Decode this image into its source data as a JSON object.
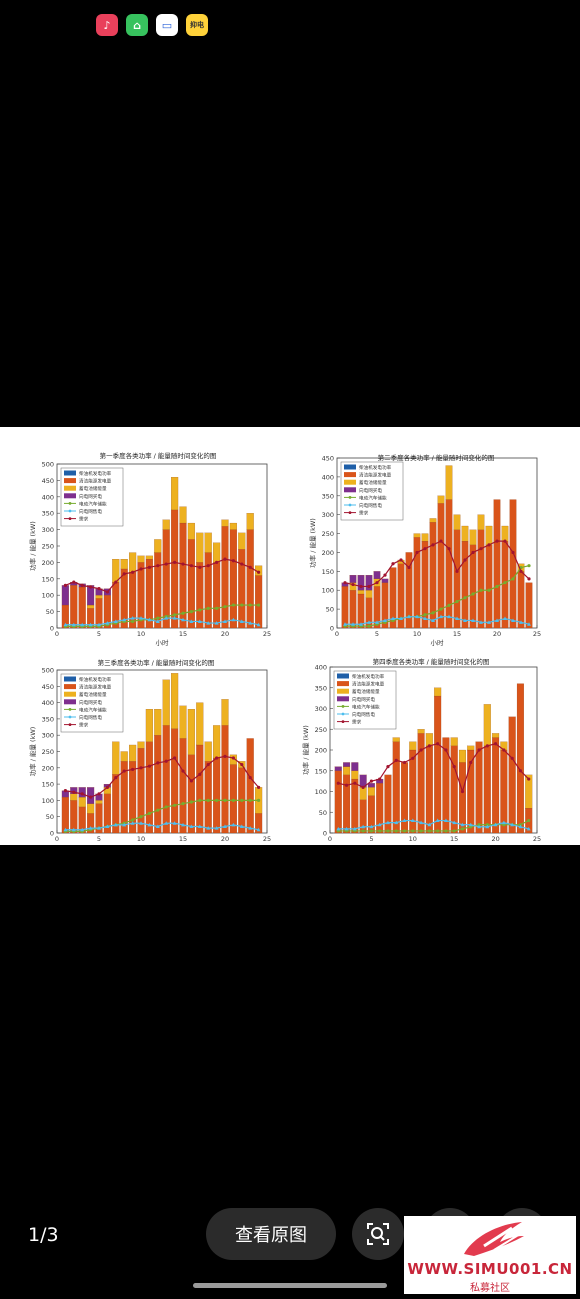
{
  "status_bar": {
    "icons": [
      "music-app-icon",
      "shopping-app-icon",
      "wallet-app-icon",
      "news-app-icon"
    ],
    "news_icon_text": "抑电"
  },
  "figure": {
    "charts": [
      {
        "title": "第一季度各类功率 / 能量随时间变化的图",
        "xlabel": "小时",
        "ylabel": "功率 / 能量 (kW)"
      },
      {
        "title": "第二季度各类功率 / 能量随时间变化的图",
        "xlabel": "小时",
        "ylabel": "功率 / 能量 (kW)"
      },
      {
        "title": "第三季度各类功率 / 能量随时间变化的图",
        "xlabel": "",
        "ylabel": "功率 / 能量 (kW)"
      },
      {
        "title": "第四季度各类功率 / 能量随时间变化的图",
        "xlabel": "",
        "ylabel": "功率 / 能量 (kW)"
      }
    ],
    "legend": [
      "柴油机发电功率",
      "清洁能源发电量",
      "蓄电池储能量",
      "向电网买电",
      "电动汽车储能",
      "向电网售电",
      "需求"
    ],
    "colors": {
      "diesel": "#1f5fa8",
      "clean": "#d9541a",
      "battery": "#edb120",
      "grid_buy": "#7e2f8e",
      "ev": "#77ac30",
      "grid_sell": "#4dbeee",
      "demand": "#a2142f"
    }
  },
  "chart_data": [
    {
      "type": "bar",
      "title": "第一季度各类功率 / 能量随时间变化的图",
      "xlabel": "小时",
      "ylabel": "功率 / 能量 (kW)",
      "ylim": [
        0,
        500
      ],
      "yticks": [
        0,
        50,
        100,
        150,
        200,
        250,
        300,
        350,
        400,
        450,
        500
      ],
      "xlim": [
        0,
        25
      ],
      "xticks": [
        0,
        5,
        10,
        15,
        20,
        25
      ],
      "x": [
        1,
        2,
        3,
        4,
        5,
        6,
        7,
        8,
        9,
        10,
        11,
        12,
        13,
        14,
        15,
        16,
        17,
        18,
        19,
        20,
        21,
        22,
        23,
        24
      ],
      "series": [
        {
          "name": "清洁能源发电量",
          "values": [
            70,
            130,
            125,
            60,
            90,
            100,
            140,
            180,
            170,
            200,
            210,
            230,
            300,
            360,
            320,
            270,
            200,
            230,
            200,
            310,
            300,
            240,
            300,
            160
          ]
        },
        {
          "name": "蓄电池储能量",
          "values": [
            0,
            0,
            0,
            10,
            10,
            0,
            70,
            30,
            60,
            20,
            10,
            40,
            30,
            100,
            50,
            50,
            90,
            60,
            60,
            20,
            20,
            50,
            50,
            30
          ]
        },
        {
          "name": "向电网买电",
          "values": [
            60,
            10,
            10,
            60,
            20,
            20,
            0,
            0,
            0,
            0,
            0,
            0,
            0,
            0,
            0,
            0,
            0,
            0,
            0,
            0,
            0,
            0,
            0,
            0
          ]
        },
        {
          "name": "电动汽车储能",
          "values": [
            5,
            5,
            5,
            5,
            5,
            10,
            15,
            20,
            20,
            25,
            25,
            30,
            35,
            40,
            45,
            50,
            55,
            60,
            60,
            65,
            70,
            70,
            70,
            70
          ]
        },
        {
          "name": "向电网售电",
          "values": [
            10,
            10,
            10,
            10,
            10,
            15,
            20,
            25,
            30,
            30,
            25,
            20,
            30,
            30,
            25,
            20,
            20,
            15,
            15,
            20,
            25,
            20,
            15,
            10
          ]
        },
        {
          "name": "需求",
          "values": [
            130,
            140,
            130,
            125,
            120,
            110,
            140,
            165,
            170,
            180,
            185,
            190,
            195,
            200,
            195,
            190,
            185,
            190,
            200,
            210,
            205,
            195,
            185,
            170
          ]
        }
      ]
    },
    {
      "type": "bar",
      "title": "第二季度各类功率 / 能量随时间变化的图",
      "xlabel": "小时",
      "ylabel": "功率 / 能量 (kW)",
      "ylim": [
        0,
        450
      ],
      "yticks": [
        0,
        50,
        100,
        150,
        200,
        250,
        300,
        350,
        400,
        450
      ],
      "xlim": [
        0,
        25
      ],
      "xticks": [
        0,
        5,
        10,
        15,
        20,
        25
      ],
      "x": [
        1,
        2,
        3,
        4,
        5,
        6,
        7,
        8,
        9,
        10,
        11,
        12,
        13,
        14,
        15,
        16,
        17,
        18,
        19,
        20,
        21,
        22,
        23,
        24
      ],
      "series": [
        {
          "name": "清洁能源发电量",
          "values": [
            110,
            100,
            90,
            80,
            110,
            120,
            160,
            170,
            200,
            240,
            230,
            280,
            330,
            340,
            260,
            230,
            220,
            260,
            220,
            340,
            230,
            340,
            150,
            120
          ]
        },
        {
          "name": "蓄电池储能量",
          "values": [
            0,
            20,
            10,
            20,
            20,
            0,
            0,
            10,
            0,
            10,
            20,
            10,
            20,
            90,
            40,
            40,
            40,
            40,
            50,
            0,
            40,
            0,
            20,
            0
          ]
        },
        {
          "name": "向电网买电",
          "values": [
            10,
            20,
            40,
            40,
            20,
            10,
            0,
            0,
            0,
            0,
            0,
            0,
            0,
            0,
            0,
            0,
            0,
            0,
            0,
            0,
            0,
            0,
            0,
            0
          ]
        },
        {
          "name": "电动汽车储能",
          "values": [
            5,
            5,
            5,
            5,
            10,
            15,
            20,
            25,
            30,
            30,
            35,
            40,
            50,
            60,
            70,
            80,
            90,
            100,
            100,
            110,
            120,
            130,
            160,
            165
          ]
        },
        {
          "name": "向电网售电",
          "values": [
            10,
            10,
            10,
            15,
            15,
            20,
            25,
            25,
            30,
            30,
            25,
            20,
            30,
            30,
            25,
            20,
            20,
            15,
            15,
            20,
            25,
            20,
            15,
            10
          ]
        },
        {
          "name": "需求",
          "values": [
            120,
            115,
            110,
            110,
            120,
            140,
            170,
            180,
            160,
            200,
            210,
            220,
            230,
            210,
            150,
            180,
            200,
            210,
            220,
            230,
            230,
            200,
            150,
            130
          ]
        }
      ]
    },
    {
      "type": "bar",
      "title": "第三季度各类功率 / 能量随时间变化的图",
      "xlabel": "",
      "ylabel": "功率 / 能量 (kW)",
      "ylim": [
        0,
        500
      ],
      "yticks": [
        0,
        50,
        100,
        150,
        200,
        250,
        300,
        350,
        400,
        450,
        500
      ],
      "xlim": [
        0,
        25
      ],
      "xticks": [
        0,
        5,
        10,
        15,
        20,
        25
      ],
      "x": [
        1,
        2,
        3,
        4,
        5,
        6,
        7,
        8,
        9,
        10,
        11,
        12,
        13,
        14,
        15,
        16,
        17,
        18,
        19,
        20,
        21,
        22,
        23,
        24
      ],
      "series": [
        {
          "name": "清洁能源发电量",
          "values": [
            110,
            100,
            80,
            60,
            90,
            120,
            180,
            220,
            220,
            260,
            280,
            300,
            330,
            320,
            290,
            240,
            270,
            220,
            230,
            330,
            210,
            200,
            290,
            60
          ]
        },
        {
          "name": "蓄电池储能量",
          "values": [
            0,
            20,
            30,
            30,
            10,
            20,
            100,
            30,
            50,
            20,
            100,
            80,
            140,
            170,
            100,
            140,
            130,
            60,
            100,
            80,
            30,
            20,
            0,
            80
          ]
        },
        {
          "name": "向电网买电",
          "values": [
            20,
            20,
            30,
            50,
            20,
            10,
            0,
            0,
            0,
            0,
            0,
            0,
            0,
            0,
            0,
            0,
            0,
            0,
            0,
            0,
            0,
            0,
            0,
            0
          ]
        },
        {
          "name": "电动汽车储能",
          "values": [
            5,
            5,
            5,
            10,
            15,
            20,
            25,
            30,
            40,
            50,
            60,
            70,
            80,
            85,
            90,
            95,
            100,
            100,
            100,
            100,
            100,
            100,
            100,
            100
          ]
        },
        {
          "name": "向电网售电",
          "values": [
            10,
            10,
            10,
            15,
            15,
            20,
            25,
            25,
            30,
            30,
            25,
            20,
            30,
            30,
            25,
            20,
            20,
            15,
            15,
            20,
            25,
            20,
            15,
            10
          ]
        },
        {
          "name": "需求",
          "values": [
            130,
            125,
            120,
            110,
            120,
            140,
            170,
            190,
            195,
            200,
            205,
            215,
            220,
            230,
            190,
            160,
            180,
            210,
            230,
            235,
            230,
            210,
            170,
            140
          ]
        }
      ]
    },
    {
      "type": "bar",
      "title": "第四季度各类功率 / 能量随时间变化的图",
      "xlabel": "",
      "ylabel": "功率 / 能量 (kW)",
      "ylim": [
        0,
        400
      ],
      "yticks": [
        0,
        50,
        100,
        150,
        200,
        250,
        300,
        350,
        400
      ],
      "xlim": [
        0,
        25
      ],
      "xticks": [
        0,
        5,
        10,
        15,
        20,
        25
      ],
      "x": [
        1,
        2,
        3,
        4,
        5,
        6,
        7,
        8,
        9,
        10,
        11,
        12,
        13,
        14,
        15,
        16,
        17,
        18,
        19,
        20,
        21,
        22,
        23,
        24
      ],
      "series": [
        {
          "name": "清洁能源发电量",
          "values": [
            150,
            140,
            130,
            80,
            90,
            120,
            140,
            220,
            170,
            200,
            240,
            210,
            330,
            230,
            210,
            170,
            200,
            220,
            210,
            230,
            200,
            280,
            360,
            60
          ]
        },
        {
          "name": "蓄电池储能量",
          "values": [
            0,
            20,
            20,
            30,
            20,
            0,
            0,
            10,
            0,
            20,
            10,
            30,
            20,
            0,
            20,
            30,
            10,
            0,
            100,
            10,
            20,
            0,
            0,
            80
          ]
        },
        {
          "name": "向电网买电",
          "values": [
            10,
            10,
            20,
            30,
            10,
            10,
            0,
            0,
            0,
            0,
            0,
            0,
            0,
            0,
            0,
            0,
            0,
            0,
            0,
            0,
            0,
            0,
            0,
            0
          ]
        },
        {
          "name": "电动汽车储能",
          "values": [
            5,
            5,
            5,
            5,
            5,
            5,
            5,
            5,
            5,
            5,
            5,
            5,
            5,
            5,
            5,
            10,
            15,
            20,
            20,
            20,
            20,
            20,
            20,
            30
          ]
        },
        {
          "name": "向电网售电",
          "values": [
            10,
            10,
            10,
            15,
            15,
            20,
            25,
            25,
            30,
            30,
            25,
            20,
            30,
            30,
            25,
            20,
            20,
            15,
            15,
            20,
            25,
            20,
            15,
            10
          ]
        },
        {
          "name": "需求",
          "values": [
            120,
            115,
            120,
            110,
            125,
            130,
            160,
            175,
            170,
            180,
            200,
            210,
            215,
            200,
            160,
            100,
            170,
            200,
            210,
            215,
            200,
            180,
            150,
            130
          ]
        }
      ]
    }
  ],
  "viewer": {
    "page_counter": "1/3",
    "view_original_label": "查看原图"
  },
  "watermark": {
    "url": "WWW.SIMU001.CN",
    "caption": "私募社区"
  }
}
